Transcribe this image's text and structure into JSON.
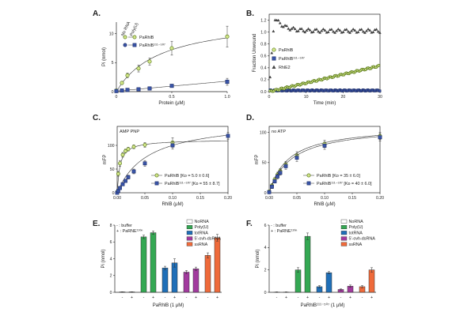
{
  "colors": {
    "green_fill": "#d4e88a",
    "green_stroke": "#5b7a1e",
    "blue_fill": "#3a55a8",
    "blue_stroke": "#1f2f6a",
    "gray": "#444444",
    "axis": "#222222",
    "norna": "#ffffff",
    "polyu": "#34a853",
    "totrna": "#1f6fb8",
    "fiveoh": "#a23a9e",
    "ssrna": "#ef6a3a"
  },
  "chart_data": [
    {
      "id": "A",
      "panel_label": "A.",
      "type": "line",
      "xlabel": "Protein (μM)",
      "ylabel": "Pi (nmol)",
      "xlim": [
        0,
        1.0
      ],
      "ylim": [
        0,
        12
      ],
      "xticks": [
        "0",
        "0.5",
        "1.0"
      ],
      "yticks": [
        "0",
        "5",
        "10"
      ],
      "xtick_values": [
        0,
        0.5,
        1.0
      ],
      "ytick_values": [
        0,
        5,
        10
      ],
      "legend_header": [
        "No RNA",
        "Poly(U)"
      ],
      "series": [
        {
          "name": "PaRhlB",
          "marker": "circle",
          "color": "green",
          "x": [
            0,
            0.05,
            0.1,
            0.2,
            0.3,
            0.5,
            1.0
          ],
          "y": [
            0.2,
            1.5,
            2.8,
            4.0,
            5.2,
            7.5,
            9.5
          ],
          "err": [
            0,
            0.3,
            0.4,
            0.6,
            0.6,
            1.2,
            1.8
          ]
        },
        {
          "name": "PaRhlB¹¹¹⁻⁵⁰⁷",
          "marker": "square",
          "color": "blue",
          "x": [
            0,
            0.05,
            0.1,
            0.2,
            0.3,
            0.5,
            1.0
          ],
          "y": [
            0.1,
            0.2,
            0.3,
            0.4,
            0.55,
            1.0,
            1.7
          ],
          "err": [
            0,
            0.05,
            0.1,
            0.1,
            0.1,
            0.2,
            0.6
          ]
        }
      ]
    },
    {
      "id": "B",
      "panel_label": "B.",
      "type": "scatter",
      "xlabel": "Time (min)",
      "ylabel": "Fraction Unwound",
      "xlim": [
        0,
        30
      ],
      "ylim": [
        0,
        1.3
      ],
      "xticks": [
        "0",
        "10",
        "20",
        "30"
      ],
      "yticks": [
        "0.0",
        "0.2",
        "0.4",
        "0.6",
        "0.8",
        "1.0",
        "1.2"
      ],
      "xtick_values": [
        0,
        10,
        20,
        30
      ],
      "ytick_values": [
        0,
        0.2,
        0.4,
        0.6,
        0.8,
        1.0,
        1.2
      ],
      "series": [
        {
          "name": "PaRhlB",
          "marker": "circle",
          "color": "green",
          "model": "linear",
          "slope": 0.0145
        },
        {
          "name": "PaRhlB¹¹¹⁻⁵⁰⁷",
          "marker": "square",
          "color": "blue",
          "model": "flat",
          "level": 0.02
        },
        {
          "name": "RhlE2",
          "marker": "triangle",
          "color": "gray",
          "model": "burst",
          "peak": 1.25,
          "plateau": 1.02
        }
      ]
    },
    {
      "id": "C",
      "panel_label": "C.",
      "type": "line",
      "annotation": "AMP PNP",
      "xlabel": "RhlB (μM)",
      "ylabel": "mFP",
      "xlim": [
        0,
        0.2
      ],
      "ylim": [
        0,
        140
      ],
      "xticks": [
        "0.00",
        "0.05",
        "0.10",
        "0.15",
        "0.20"
      ],
      "yticks": [
        "0",
        "50",
        "100"
      ],
      "xtick_values": [
        0,
        0.05,
        0.1,
        0.15,
        0.2
      ],
      "ytick_values": [
        0,
        50,
        100
      ],
      "series": [
        {
          "name": "PaRhlB [Kᴅ = 5.0 ± 0.6]",
          "marker": "circle",
          "color": "green",
          "x": [
            0,
            0.002,
            0.005,
            0.01,
            0.015,
            0.02,
            0.03,
            0.05,
            0.1
          ],
          "y": [
            2,
            40,
            62,
            80,
            88,
            92,
            97,
            101,
            106
          ],
          "err": [
            0,
            5,
            6,
            5,
            4,
            4,
            4,
            5,
            10
          ],
          "fit": {
            "bmax": 112,
            "kd": 0.005
          }
        },
        {
          "name": "PaRhlB¹¹¹⁻⁵⁰⁷ [Kᴅ = 55 ± 8.7]",
          "marker": "square",
          "color": "blue",
          "x": [
            0,
            0.002,
            0.005,
            0.01,
            0.015,
            0.02,
            0.03,
            0.05,
            0.1,
            0.2
          ],
          "y": [
            0,
            4,
            10,
            18,
            25,
            33,
            45,
            62,
            100,
            120
          ],
          "err": [
            0,
            2,
            3,
            3,
            3,
            4,
            5,
            6,
            8,
            7
          ],
          "fit": {
            "bmax": 155,
            "kd": 0.055
          }
        }
      ]
    },
    {
      "id": "D",
      "panel_label": "D.",
      "type": "line",
      "annotation": "no ATP",
      "xlabel": "RhlB (μM)",
      "ylabel": "mFP",
      "xlim": [
        0,
        0.2
      ],
      "ylim": [
        0,
        110
      ],
      "xticks": [
        "0.00",
        "0.05",
        "0.10",
        "0.15",
        "0.20"
      ],
      "yticks": [
        "0",
        "50",
        "100"
      ],
      "xtick_values": [
        0,
        0.05,
        0.1,
        0.15,
        0.2
      ],
      "ytick_values": [
        0,
        50,
        100
      ],
      "series": [
        {
          "name": "PaRhlB [Kᴅ = 35 ± 6.0]",
          "marker": "circle",
          "color": "green",
          "x": [
            0,
            0.005,
            0.01,
            0.015,
            0.02,
            0.03,
            0.05,
            0.1,
            0.2
          ],
          "y": [
            2,
            12,
            22,
            30,
            36,
            47,
            62,
            81,
            94
          ],
          "err": [
            0,
            3,
            3,
            4,
            4,
            5,
            6,
            6,
            6
          ],
          "fit": {
            "bmax": 112,
            "kd": 0.035
          }
        },
        {
          "name": "PaRhlB¹¹¹⁻⁵⁰⁷ [Kᴅ = 40 ± 6.0]",
          "marker": "square",
          "color": "blue",
          "x": [
            0,
            0.005,
            0.01,
            0.015,
            0.02,
            0.03,
            0.05,
            0.1,
            0.2
          ],
          "y": [
            1,
            10,
            19,
            27,
            33,
            44,
            58,
            78,
            92
          ],
          "err": [
            0,
            3,
            3,
            4,
            4,
            5,
            6,
            6,
            6
          ],
          "fit": {
            "bmax": 112,
            "kd": 0.04
          }
        }
      ]
    },
    {
      "id": "E",
      "panel_label": "E.",
      "type": "bar",
      "xlabel": "PaRhlB (1 μM)",
      "ylabel": "Pi (nmol)",
      "ylim": [
        0,
        8
      ],
      "yticks": [
        "0",
        "2",
        "4",
        "6",
        "8"
      ],
      "ytick_values": [
        0,
        2,
        4,
        6,
        8
      ],
      "buffer_legend": [
        "- : buffer",
        "+ : PaRNE¹¹⁰ⁿ"
      ],
      "legend": [
        "NoRNA",
        "Poly(U)",
        "totRNA",
        "5'-ovh-dsRNA",
        "ssRNA"
      ],
      "groups": [
        {
          "name": "NoRNA",
          "color": "norna",
          "values": [
            0.05,
            0.05
          ],
          "err": [
            0.02,
            0.02
          ],
          "signs": [
            "-",
            "+"
          ]
        },
        {
          "name": "Poly(U)",
          "color": "polyu",
          "values": [
            6.6,
            7.1
          ],
          "err": [
            0.2,
            0.2
          ],
          "signs": [
            "-",
            "+"
          ]
        },
        {
          "name": "totRNA",
          "color": "totrna",
          "values": [
            2.9,
            3.5
          ],
          "err": [
            0.2,
            0.5
          ],
          "signs": [
            "-",
            "+"
          ]
        },
        {
          "name": "5'-ovh-dsRNA",
          "color": "fiveoh",
          "values": [
            2.4,
            2.8
          ],
          "err": [
            0.2,
            0.2
          ],
          "signs": [
            "-",
            "+"
          ]
        },
        {
          "name": "ssRNA",
          "color": "ssrna",
          "values": [
            4.4,
            6.5
          ],
          "err": [
            0.3,
            0.4
          ],
          "signs": [
            "-",
            "+"
          ]
        }
      ]
    },
    {
      "id": "F",
      "panel_label": "F.",
      "type": "bar",
      "xlabel": "PaRhlB¹¹¹⁻⁵⁰⁷ (1 μM)",
      "ylabel": "Pi (nmol)",
      "ylim": [
        0,
        6
      ],
      "yticks": [
        "0",
        "2",
        "4",
        "6"
      ],
      "ytick_values": [
        0,
        2,
        4,
        6
      ],
      "buffer_legend": [
        "- : buffer",
        "+ : PaRNE¹¹⁰ⁿ"
      ],
      "legend": [
        "NoRNA",
        "Poly(U)",
        "totRNA",
        "5'-ovh-dsRNA",
        "ssRNA"
      ],
      "groups": [
        {
          "name": "NoRNA",
          "color": "norna",
          "values": [
            0.02,
            0.02
          ],
          "err": [
            0.02,
            0.02
          ],
          "signs": [
            "-",
            "+"
          ]
        },
        {
          "name": "Poly(U)",
          "color": "polyu",
          "values": [
            2.0,
            5.0
          ],
          "err": [
            0.2,
            0.3
          ],
          "signs": [
            "-",
            "+"
          ]
        },
        {
          "name": "totRNA",
          "color": "totrna",
          "values": [
            0.5,
            1.75
          ],
          "err": [
            0.1,
            0.1
          ],
          "signs": [
            "-",
            "+"
          ]
        },
        {
          "name": "5'-ovh-dsRNA",
          "color": "fiveoh",
          "values": [
            0.25,
            0.55
          ],
          "err": [
            0.05,
            0.1
          ],
          "signs": [
            "-",
            "+"
          ]
        },
        {
          "name": "ssRNA",
          "color": "ssrna",
          "values": [
            0.5,
            2.0
          ],
          "err": [
            0.1,
            0.2
          ],
          "signs": [
            "-",
            "+"
          ]
        }
      ]
    }
  ]
}
